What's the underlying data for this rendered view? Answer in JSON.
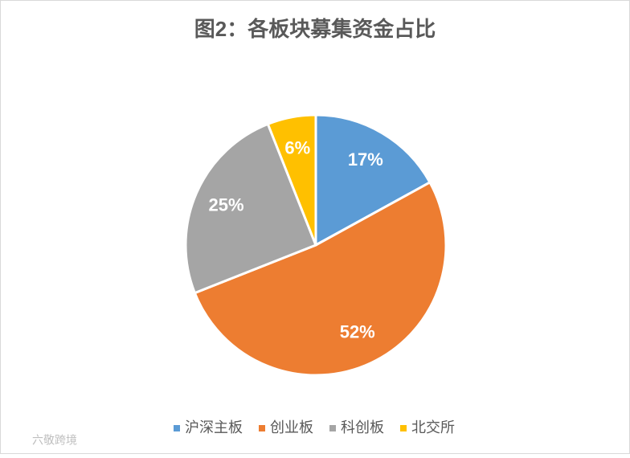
{
  "chart_data": {
    "type": "pie",
    "title": "图2：各板块募集资金占比",
    "categories": [
      "沪深主板",
      "创业板",
      "科创板",
      "北交所"
    ],
    "values": [
      17,
      52,
      25,
      6
    ],
    "value_labels": [
      "17%",
      "52%",
      "25%",
      "6%"
    ],
    "colors": [
      "#5b9bd5",
      "#ed7d31",
      "#a5a5a5",
      "#ffc000"
    ],
    "legend": "bottom",
    "watermark": "六敬跨境"
  }
}
